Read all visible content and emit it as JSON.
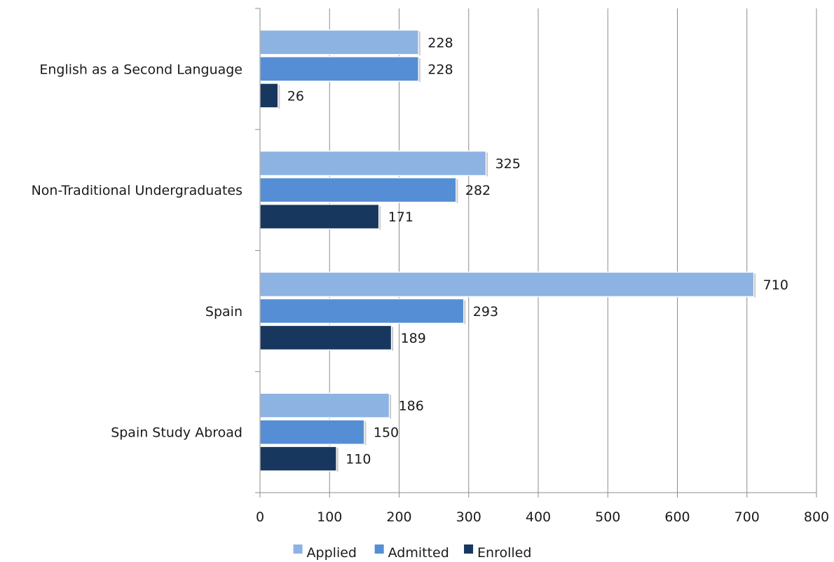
{
  "chart_data": {
    "type": "bar",
    "orientation": "horizontal",
    "categories": [
      "English as a Second Language",
      "Non-Traditional Undergraduates",
      "Spain",
      "Spain Study Abroad"
    ],
    "series": [
      {
        "name": "Applied",
        "color": "#8DB3E2",
        "values": [
          228,
          325,
          710,
          186
        ]
      },
      {
        "name": "Admitted",
        "color": "#558ED5",
        "values": [
          228,
          282,
          293,
          150
        ]
      },
      {
        "name": "Enrolled",
        "color": "#17375E",
        "values": [
          26,
          171,
          189,
          110
        ]
      }
    ],
    "xlim": [
      0,
      800
    ],
    "xticks": [
      0,
      100,
      200,
      300,
      400,
      500,
      600,
      700,
      800
    ],
    "grid": "vertical",
    "legend": "bottom"
  }
}
